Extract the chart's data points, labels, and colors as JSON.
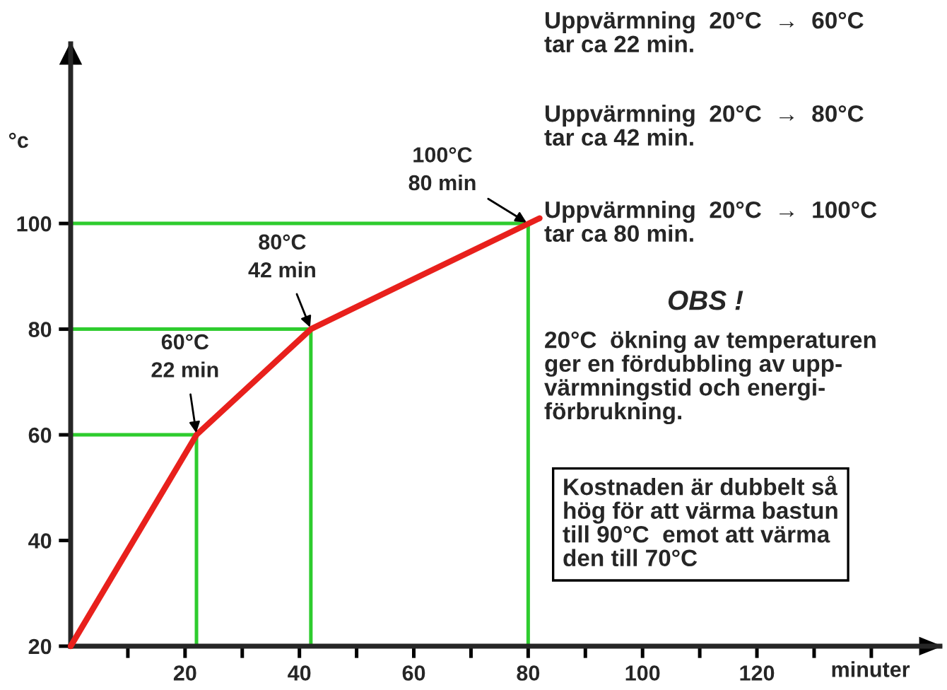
{
  "chart_data": {
    "type": "line",
    "xlabel": "minuter",
    "ylabel": "°c",
    "xlim": [
      0,
      152
    ],
    "ylim": [
      20,
      134
    ],
    "xticks": [
      {
        "value": 10,
        "label": null
      },
      20,
      {
        "value": 30,
        "label": null
      },
      40,
      {
        "value": 50,
        "label": null
      },
      60,
      {
        "value": 70,
        "label": null
      },
      80,
      {
        "value": 90,
        "label": null
      },
      100,
      {
        "value": 110,
        "label": null
      },
      120,
      {
        "value": 130,
        "label": null
      },
      {
        "value": 140,
        "label": null
      }
    ],
    "yticks": [
      20,
      40,
      60,
      80,
      100
    ],
    "grid": false,
    "legend": false,
    "marker": "none",
    "line_style": "solid",
    "series": [
      {
        "color": "#2ecc2e",
        "x": [
          0,
          22,
          22
        ],
        "values": [
          60,
          60,
          20
        ]
      },
      {
        "color": "#2ecc2e",
        "x": [
          0,
          42,
          42
        ],
        "values": [
          80,
          80,
          20
        ]
      },
      {
        "color": "#2ecc2e",
        "x": [
          0,
          80,
          80
        ],
        "values": [
          100,
          100,
          20
        ]
      },
      {
        "color": "#e8201c",
        "x": [
          0,
          22,
          42,
          61,
          82
        ],
        "values": [
          20,
          60,
          80,
          90,
          101
        ]
      }
    ],
    "annotations": [
      {
        "text": "60°C\n22 min",
        "x": 22,
        "y": 60
      },
      {
        "text": "80°C\n42 min",
        "x": 42,
        "y": 80
      },
      {
        "text": "100°C\n80 min",
        "x": 80,
        "y": 100
      },
      "Uppvärmning  20°C  →  60°C\ntar ca 22 min.",
      "Uppvärmning  20°C  →  80°C\ntar ca 42 min.",
      "Uppvärmning  20°C  →  100°C\ntar ca 80 min.",
      "OBS !",
      "20°C  ökning av temperaturen\nger en fördubbling av upp-\nvärmningstid och energi-\nförbrukning.",
      "Kostnaden är dubbelt så\nhög för att värma bastun\ntill 90°C  emot att värma\nden till 70°C"
    ]
  }
}
